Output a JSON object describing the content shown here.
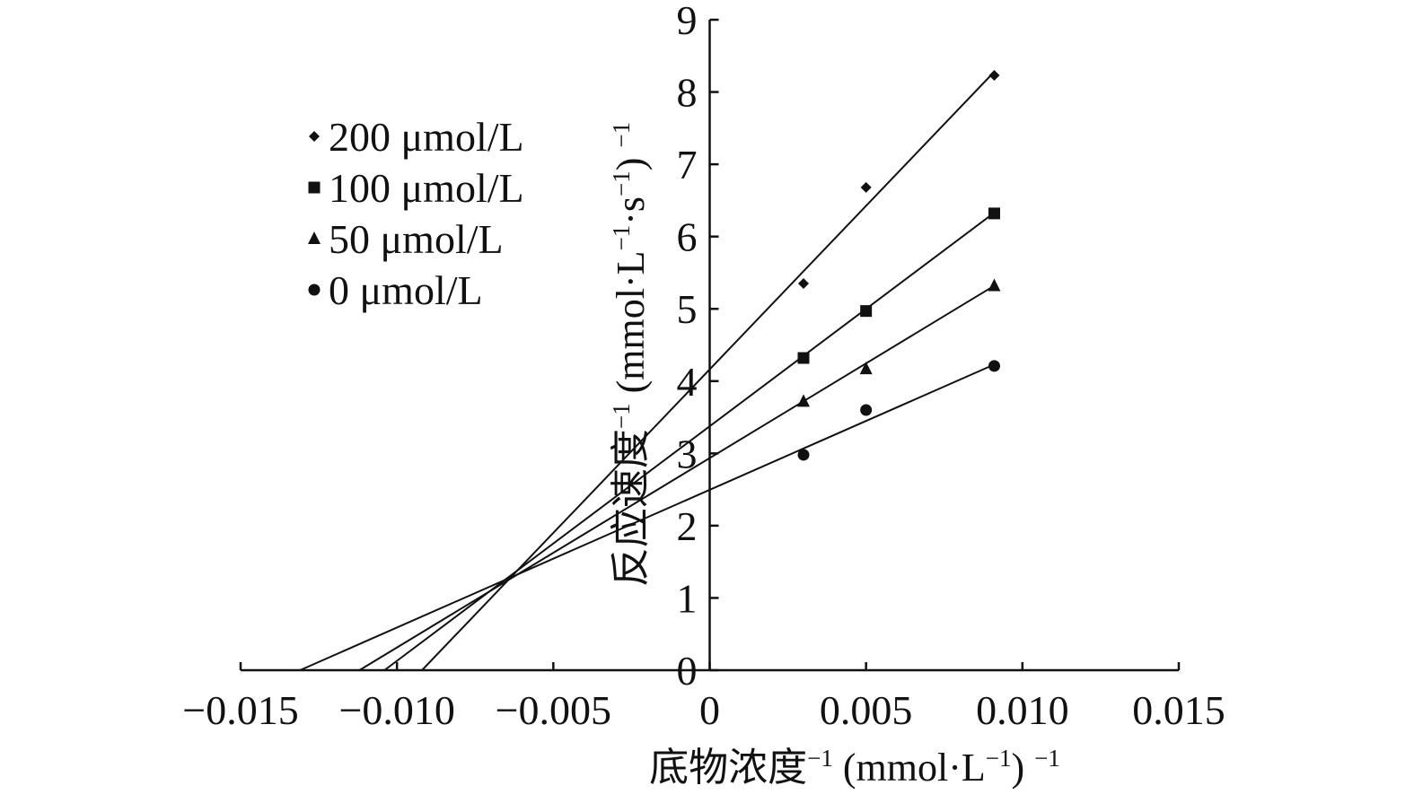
{
  "chart_data": {
    "type": "scatter",
    "title": "",
    "xlabel": {
      "text": "底物浓度",
      "sup1": "−1",
      "units": " (mmol·L",
      "sup2": "−1",
      "close": ") ",
      "sup3": "−1"
    },
    "ylabel": {
      "text": "反应速度",
      "sup1": "−1",
      "units": " (mmol·L",
      "sup2": "−1",
      "mid": "·s",
      "sup3": "−1",
      "close": ") ",
      "sup4": "−1"
    },
    "xlim": [
      -0.015,
      0.015
    ],
    "ylim": [
      0,
      9
    ],
    "x_ticks": [
      {
        "value": -0.015,
        "label": "−0.015"
      },
      {
        "value": -0.01,
        "label": "−0.010"
      },
      {
        "value": -0.005,
        "label": "−0.005"
      },
      {
        "value": 0,
        "label": "0"
      },
      {
        "value": 0.005,
        "label": "0.005"
      },
      {
        "value": 0.01,
        "label": "0.010"
      },
      {
        "value": 0.015,
        "label": "0.015"
      }
    ],
    "y_ticks": [
      {
        "value": 0,
        "label": "0"
      },
      {
        "value": 1,
        "label": "1"
      },
      {
        "value": 2,
        "label": "2"
      },
      {
        "value": 3,
        "label": "3"
      },
      {
        "value": 4,
        "label": "4"
      },
      {
        "value": 5,
        "label": "5"
      },
      {
        "value": 6,
        "label": "6"
      },
      {
        "value": 7,
        "label": "7"
      },
      {
        "value": 8,
        "label": "8"
      },
      {
        "value": 9,
        "label": "9"
      }
    ],
    "grid": false,
    "legend_position": "top-left",
    "series": [
      {
        "name": "200 μmol/L",
        "marker": "diamond",
        "x": [
          0.003,
          0.005,
          0.0091
        ],
        "y": [
          5.35,
          6.68,
          8.23
        ],
        "fit_line": {
          "x": [
            -0.0092,
            0.0091
          ],
          "y": [
            0,
            8.28
          ]
        }
      },
      {
        "name": "100 μmol/L",
        "marker": "square",
        "x": [
          0.003,
          0.005,
          0.0091
        ],
        "y": [
          4.32,
          4.97,
          6.32
        ],
        "fit_line": {
          "x": [
            -0.0104,
            0.0091
          ],
          "y": [
            0,
            6.33
          ]
        }
      },
      {
        "name": "50 μmol/L",
        "marker": "triangle",
        "x": [
          0.003,
          0.005,
          0.0091
        ],
        "y": [
          3.72,
          4.17,
          5.32
        ],
        "fit_line": {
          "x": [
            -0.0112,
            0.0091
          ],
          "y": [
            0,
            5.32
          ]
        }
      },
      {
        "name": "0 μmol/L",
        "marker": "circle",
        "x": [
          0.003,
          0.005,
          0.0091
        ],
        "y": [
          2.98,
          3.6,
          4.21
        ],
        "fit_line": {
          "x": [
            -0.0131,
            0.0091
          ],
          "y": [
            0,
            4.23
          ]
        }
      }
    ]
  }
}
